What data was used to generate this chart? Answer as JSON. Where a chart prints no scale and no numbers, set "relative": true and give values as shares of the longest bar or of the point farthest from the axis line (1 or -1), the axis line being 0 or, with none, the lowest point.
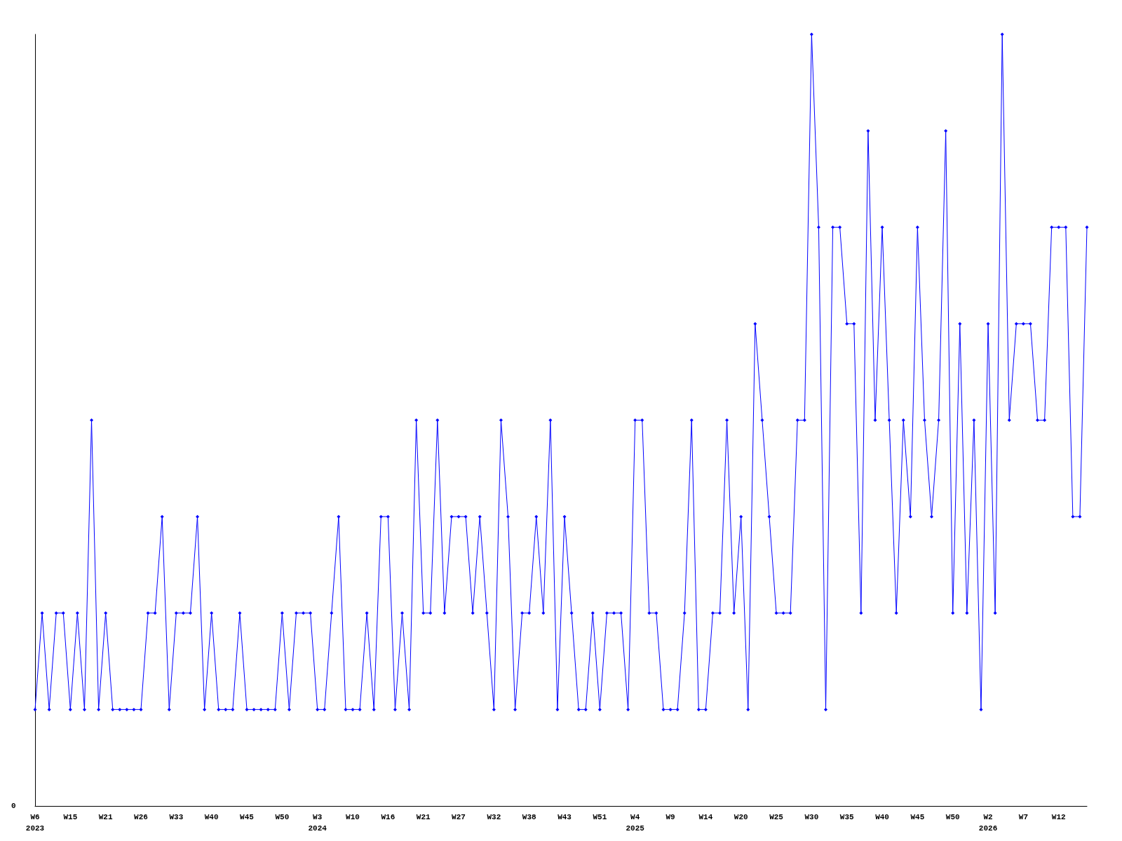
{
  "chart_data": {
    "type": "line",
    "relative": true,
    "marker": "diamond",
    "line_style": "solid",
    "categories": [
      "W6\n2023",
      null,
      null,
      null,
      null,
      "W15",
      null,
      null,
      null,
      null,
      "W21",
      null,
      null,
      null,
      null,
      "W26",
      null,
      null,
      null,
      null,
      "W33",
      null,
      null,
      null,
      null,
      "W40",
      null,
      null,
      null,
      null,
      "W45",
      null,
      null,
      null,
      null,
      "W50",
      null,
      null,
      null,
      null,
      "W3\n2024",
      null,
      null,
      null,
      null,
      "W10",
      null,
      null,
      null,
      null,
      "W16",
      null,
      null,
      null,
      null,
      "W21",
      null,
      null,
      null,
      null,
      "W27",
      null,
      null,
      null,
      null,
      "W32",
      null,
      null,
      null,
      null,
      "W38",
      null,
      null,
      null,
      null,
      "W43",
      null,
      null,
      null,
      null,
      "W51",
      null,
      null,
      null,
      null,
      "W4\n2025",
      null,
      null,
      null,
      null,
      "W9",
      null,
      null,
      null,
      null,
      "W14",
      null,
      null,
      null,
      null,
      "W20",
      null,
      null,
      null,
      null,
      "W25",
      null,
      null,
      null,
      null,
      "W30",
      null,
      null,
      null,
      null,
      "W35",
      null,
      null,
      null,
      null,
      "W40",
      null,
      null,
      null,
      null,
      "W45",
      null,
      null,
      null,
      null,
      "W50",
      null,
      null,
      null,
      null,
      "W2\n2026",
      null,
      null,
      null,
      null,
      "W7",
      null,
      null,
      null,
      null,
      "W12",
      null,
      null,
      null,
      null
    ],
    "series": [
      {
        "color": "#0000ff",
        "values": [
          0.125,
          0.25,
          0.125,
          0.25,
          0.25,
          0.125,
          0.25,
          0.125,
          0.5,
          0.125,
          0.25,
          0.125,
          0.125,
          0.125,
          0.125,
          0.125,
          0.25,
          0.25,
          0.375,
          0.125,
          0.25,
          0.25,
          0.25,
          0.375,
          0.125,
          0.25,
          0.125,
          0.125,
          0.125,
          0.25,
          0.125,
          0.125,
          0.125,
          0.125,
          0.125,
          0.25,
          0.125,
          0.25,
          0.25,
          0.25,
          0.125,
          0.125,
          0.25,
          0.375,
          0.125,
          0.125,
          0.125,
          0.25,
          0.125,
          0.375,
          0.375,
          0.125,
          0.25,
          0.125,
          0.5,
          0.25,
          0.25,
          0.5,
          0.25,
          0.375,
          0.375,
          0.375,
          0.25,
          0.375,
          0.25,
          0.125,
          0.5,
          0.375,
          0.125,
          0.25,
          0.25,
          0.375,
          0.25,
          0.5,
          0.125,
          0.375,
          0.25,
          0.125,
          0.125,
          0.25,
          0.125,
          0.25,
          0.25,
          0.25,
          0.125,
          0.5,
          0.5,
          0.25,
          0.25,
          0.125,
          0.125,
          0.125,
          0.25,
          0.5,
          0.125,
          0.125,
          0.25,
          0.25,
          0.5,
          0.25,
          0.375,
          0.125,
          0.625,
          0.5,
          0.375,
          0.25,
          0.25,
          0.25,
          0.5,
          0.5,
          1,
          0.75,
          0.125,
          0.75,
          0.75,
          0.625,
          0.625,
          0.25,
          0.875,
          0.5,
          0.75,
          0.5,
          0.25,
          0.5,
          0.375,
          0.75,
          0.5,
          0.375,
          0.5,
          0.875,
          0.25,
          0.625,
          0.25,
          0.5,
          0.125,
          0.625,
          0.25,
          1,
          0.5,
          0.625,
          0.625,
          0.625,
          0.5,
          0.5,
          0.75,
          0.75,
          0.75,
          0.375,
          0.375,
          0.75
        ]
      }
    ],
    "annotations": [
      "0"
    ]
  }
}
